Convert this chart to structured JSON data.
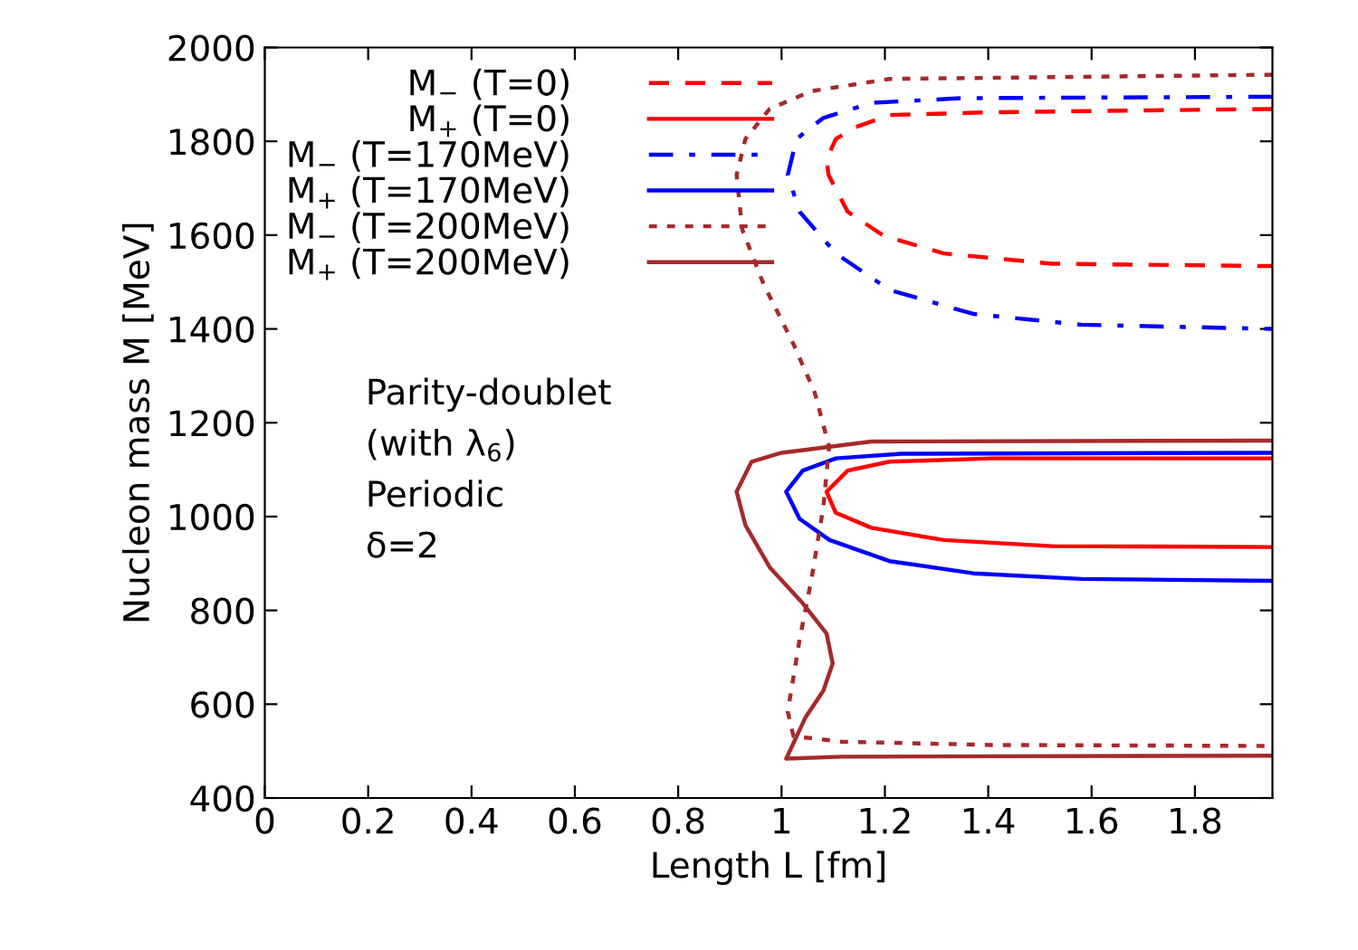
{
  "chart_data": {
    "type": "line",
    "xlabel": "Length L [fm]",
    "ylabel": "Nucleon mass M [MeV]",
    "xlim": [
      0,
      1.95
    ],
    "xticks": [
      0,
      0.2,
      0.4,
      0.6,
      0.8,
      1,
      1.2,
      1.4,
      1.6,
      1.8
    ],
    "ylim": [
      400,
      2000
    ],
    "yticks": [
      400,
      600,
      800,
      1000,
      1200,
      1400,
      1600,
      1800,
      2000
    ],
    "grid": false,
    "legend": "top left",
    "marker": "none",
    "annotations": [
      "Parity-doublet",
      "(with λ$_{6}$)",
      "Periodic",
      "δ=2"
    ],
    "series": [
      {
        "name": "M$_{−}$ (T=0)",
        "color": "#ff0000",
        "line_style": "dashed",
        "x": [
          1.95,
          1.406,
          1.209,
          1.143,
          1.105,
          1.087,
          1.091,
          1.128,
          1.197,
          1.314,
          1.523,
          1.95
        ],
        "values": [
          1869,
          1862,
          1856,
          1830,
          1805,
          1761,
          1728,
          1650,
          1599,
          1561,
          1539,
          1534
        ]
      },
      {
        "name": "M$_{+}$ (T=0)",
        "color": "#ff0000",
        "line_style": "solid",
        "x": [
          1.95,
          1.406,
          1.209,
          1.128,
          1.087,
          1.105,
          1.174,
          1.314,
          1.523,
          1.95
        ],
        "values": [
          1124,
          1124,
          1117,
          1098,
          1053,
          1008,
          976,
          950,
          937,
          935
        ]
      },
      {
        "name": "M$_{−}$ (T=170MeV)",
        "color": "#0000ff",
        "line_style": "dashdot",
        "x": [
          1.95,
          1.348,
          1.174,
          1.081,
          1.029,
          1.012,
          1.035,
          1.105,
          1.209,
          1.371,
          1.58,
          1.95
        ],
        "values": [
          1895,
          1892,
          1882,
          1850,
          1805,
          1728,
          1650,
          1561,
          1483,
          1432,
          1409,
          1400
        ]
      },
      {
        "name": "M$_{+}$ (T=170MeV)",
        "color": "#0000ff",
        "line_style": "solid",
        "x": [
          1.95,
          1.232,
          1.105,
          1.041,
          1.009,
          1.035,
          1.093,
          1.209,
          1.371,
          1.58,
          1.95
        ],
        "values": [
          1136,
          1134,
          1124,
          1098,
          1053,
          995,
          950,
          905,
          879,
          867,
          863
        ]
      },
      {
        "name": "M$_{−}$ (T=200MeV)",
        "color": "#a52a2a",
        "line_style": "dotted",
        "x": [
          1.95,
          1.209,
          1.058,
          0.977,
          0.93,
          0.913,
          0.924,
          0.965,
          1.023,
          1.064,
          1.092,
          1.081,
          1.058,
          1.035,
          1.012,
          1.023,
          1.116,
          1.406,
          1.95
        ],
        "values": [
          1942,
          1933,
          1907,
          1869,
          1805,
          1728,
          1612,
          1496,
          1368,
          1265,
          1149,
          1021,
          867,
          738,
          584,
          532,
          520,
          513,
          511
        ]
      },
      {
        "name": "M$_{+}$ (T=200MeV)",
        "color": "#a52a2a",
        "line_style": "solid",
        "x": [
          1.95,
          1.174,
          1.0,
          0.942,
          0.913,
          0.93,
          0.977,
          1.041,
          1.087,
          1.099,
          1.081,
          1.046,
          1.009,
          1.116,
          1.406,
          1.95
        ],
        "values": [
          1162,
          1160,
          1136,
          1117,
          1053,
          982,
          892,
          815,
          751,
          687,
          629,
          571,
          484,
          488,
          489,
          490
        ]
      }
    ]
  }
}
